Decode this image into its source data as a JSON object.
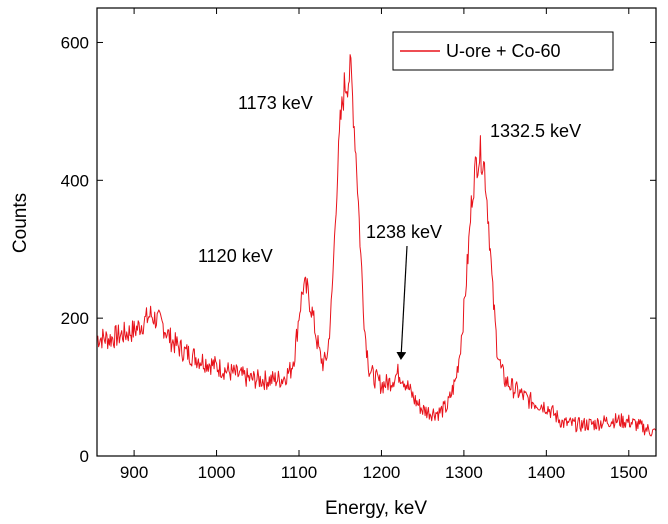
{
  "chart_data": {
    "type": "line",
    "xlabel": "Energy, keV",
    "ylabel": "Counts",
    "xlim": [
      855,
      1533
    ],
    "ylim": [
      0,
      650
    ],
    "x_ticks": [
      900,
      1000,
      1100,
      1200,
      1300,
      1400,
      1500
    ],
    "y_ticks": [
      0,
      200,
      400,
      600
    ],
    "grid": false,
    "legend_position": "top-right",
    "line_color": "#e8121a",
    "series": [
      {
        "name": "U-ore + Co-60",
        "x": [
          855,
          870,
          885,
          900,
          910,
          920,
          925,
          935,
          945,
          960,
          980,
          1000,
          1020,
          1040,
          1060,
          1080,
          1090,
          1095,
          1100,
          1105,
          1110,
          1115,
          1120,
          1125,
          1130,
          1135,
          1140,
          1145,
          1150,
          1155,
          1160,
          1163,
          1165,
          1170,
          1175,
          1180,
          1185,
          1190,
          1195,
          1200,
          1210,
          1220,
          1225,
          1230,
          1240,
          1250,
          1260,
          1270,
          1280,
          1290,
          1295,
          1300,
          1305,
          1310,
          1315,
          1320,
          1325,
          1330,
          1335,
          1340,
          1345,
          1350,
          1360,
          1380,
          1400,
          1420,
          1440,
          1460,
          1480,
          1500,
          1520,
          1533
        ],
        "y": [
          172,
          170,
          176,
          182,
          192,
          205,
          200,
          190,
          168,
          152,
          140,
          130,
          120,
          112,
          110,
          112,
          125,
          150,
          205,
          245,
          240,
          215,
          180,
          148,
          132,
          152,
          230,
          370,
          480,
          535,
          548,
          560,
          520,
          420,
          290,
          180,
          128,
          115,
          110,
          103,
          107,
          120,
          116,
          105,
          82,
          67,
          63,
          63,
          72,
          110,
          150,
          210,
          290,
          380,
          425,
          440,
          420,
          340,
          235,
          160,
          125,
          110,
          98,
          80,
          72,
          48,
          45,
          47,
          52,
          50,
          40,
          33
        ]
      }
    ],
    "annotations": [
      {
        "text": "1173 keV",
        "x": 1160,
        "y": 548
      },
      {
        "text": "1332.5 keV",
        "x": 1320,
        "y": 440
      },
      {
        "text": "1120 keV",
        "x": 1105,
        "y": 245
      },
      {
        "text": "1238 keV",
        "x": 1222,
        "y": 120
      }
    ]
  }
}
